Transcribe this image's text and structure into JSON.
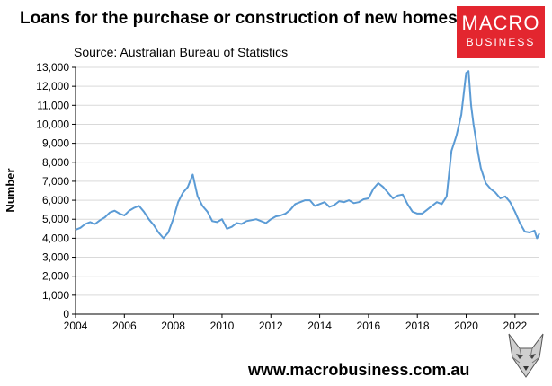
{
  "header": {
    "title": "Loans for the purchase or construction of new homes",
    "source": "Source: Australian Bureau of Statistics"
  },
  "logo": {
    "line1": "MACRO",
    "line2": "BUSINESS"
  },
  "footer": {
    "url": "www.macrobusiness.com.au"
  },
  "colors": {
    "line": "#5b9bd5",
    "logo": "#e3262f",
    "grid": "#d9d9d9"
  },
  "icons": {
    "mascot": "wolf-icon"
  },
  "chart_data": {
    "type": "line",
    "title": "Loans for the purchase or construction of new homes",
    "xlabel": "",
    "ylabel": "Number",
    "xlim": [
      2004,
      2023
    ],
    "ylim": [
      0,
      13000
    ],
    "x_ticks": [
      2004,
      2006,
      2008,
      2010,
      2012,
      2014,
      2016,
      2018,
      2020,
      2022
    ],
    "x_tick_labels": [
      "2004",
      "2006",
      "2008",
      "2010",
      "2012",
      "2014",
      "2016",
      "2018",
      "2020",
      "2022"
    ],
    "y_ticks": [
      0,
      1000,
      2000,
      3000,
      4000,
      5000,
      6000,
      7000,
      8000,
      9000,
      10000,
      11000,
      12000,
      13000
    ],
    "y_tick_labels": [
      "0",
      "1,000",
      "2,000",
      "3,000",
      "4,000",
      "5,000",
      "6,000",
      "7,000",
      "8,000",
      "9,000",
      "10,000",
      "11,000",
      "12,000",
      "13,000"
    ],
    "grid": "horizontal",
    "legend": "none",
    "series": [
      {
        "x": [
          2004.0,
          2004.2,
          2004.4,
          2004.6,
          2004.8,
          2005.0,
          2005.2,
          2005.4,
          2005.6,
          2005.8,
          2006.0,
          2006.2,
          2006.4,
          2006.6,
          2006.8,
          2007.0,
          2007.2,
          2007.4,
          2007.6,
          2007.8,
          2008.0,
          2008.2,
          2008.4,
          2008.6,
          2008.8,
          2009.0,
          2009.2,
          2009.4,
          2009.6,
          2009.8,
          2010.0,
          2010.2,
          2010.4,
          2010.6,
          2010.8,
          2011.0,
          2011.2,
          2011.4,
          2011.6,
          2011.8,
          2012.0,
          2012.2,
          2012.4,
          2012.6,
          2012.8,
          2013.0,
          2013.2,
          2013.4,
          2013.6,
          2013.8,
          2014.0,
          2014.2,
          2014.4,
          2014.6,
          2014.8,
          2015.0,
          2015.2,
          2015.4,
          2015.6,
          2015.8,
          2016.0,
          2016.2,
          2016.4,
          2016.6,
          2016.8,
          2017.0,
          2017.2,
          2017.4,
          2017.6,
          2017.8,
          2018.0,
          2018.2,
          2018.4,
          2018.6,
          2018.8,
          2019.0,
          2019.2,
          2019.4,
          2019.6,
          2019.8,
          2020.0,
          2020.1,
          2020.2,
          2020.3,
          2020.4,
          2020.5,
          2020.6,
          2020.8,
          2021.0,
          2021.2,
          2021.4,
          2021.6,
          2021.8,
          2022.0,
          2022.2,
          2022.4,
          2022.6,
          2022.8,
          2022.9,
          2023.0
        ],
        "y": [
          4450,
          4550,
          4750,
          4850,
          4750,
          4950,
          5100,
          5350,
          5450,
          5300,
          5200,
          5450,
          5600,
          5700,
          5400,
          5000,
          4700,
          4300,
          4000,
          4300,
          5000,
          5900,
          6400,
          6700,
          7350,
          6200,
          5700,
          5400,
          4900,
          4850,
          5000,
          4500,
          4600,
          4800,
          4750,
          4900,
          4950,
          5000,
          4900,
          4800,
          5000,
          5150,
          5200,
          5300,
          5500,
          5800,
          5900,
          6000,
          6000,
          5700,
          5800,
          5900,
          5650,
          5750,
          5950,
          5900,
          6000,
          5850,
          5900,
          6050,
          6100,
          6600,
          6900,
          6700,
          6400,
          6100,
          6250,
          6300,
          5800,
          5400,
          5300,
          5300,
          5500,
          5700,
          5900,
          5800,
          6200,
          8600,
          9400,
          10500,
          12700,
          12800,
          11000,
          10000,
          9200,
          8400,
          7700,
          6900,
          6600,
          6400,
          6100,
          6200,
          5900,
          5400,
          4800,
          4350,
          4300,
          4400,
          4000,
          4250
        ],
        "name": ""
      }
    ]
  }
}
